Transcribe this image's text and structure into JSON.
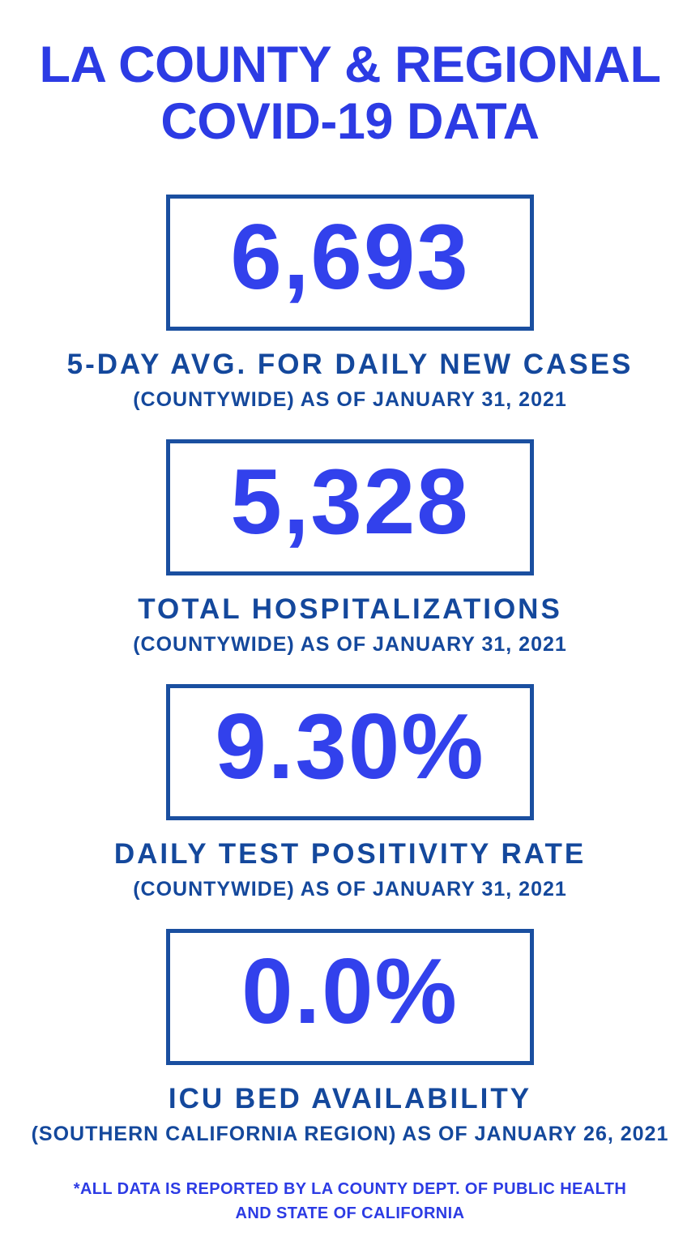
{
  "colors": {
    "accent_blue": "#2C3BE4",
    "number_blue": "#3241EC",
    "dark_blue": "#14489C",
    "border_blue": "#1A4FA0",
    "background": "#FFFFFF"
  },
  "title": {
    "line1": "LA COUNTY & REGIONAL",
    "line2": "COVID-19 DATA"
  },
  "stats": [
    {
      "value": "6,693",
      "label": "5-DAY AVG. FOR DAILY NEW CASES",
      "sublabel": "(COUNTYWIDE) AS OF JANUARY 31, 2021"
    },
    {
      "value": "5,328",
      "label": "TOTAL HOSPITALIZATIONS",
      "sublabel": "(COUNTYWIDE) AS OF JANUARY 31, 2021"
    },
    {
      "value": "9.30%",
      "label": "DAILY TEST POSITIVITY RATE",
      "sublabel": "(COUNTYWIDE) AS OF JANUARY 31, 2021"
    },
    {
      "value": "0.0%",
      "label": "ICU BED AVAILABILITY",
      "sublabel": "(SOUTHERN CALIFORNIA REGION) AS OF JANUARY 26, 2021"
    }
  ],
  "footer": {
    "line1": "*ALL DATA IS REPORTED BY LA COUNTY DEPT. OF PUBLIC HEALTH",
    "line2": "AND STATE OF CALIFORNIA"
  }
}
